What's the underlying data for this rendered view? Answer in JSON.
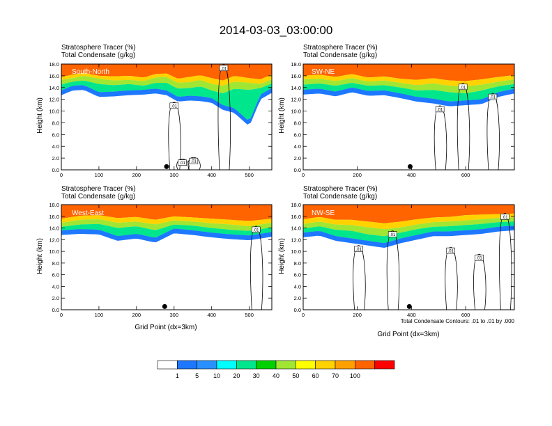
{
  "title": "2014-03-03_03:00:00",
  "footnote": "Total Condensate Contours: .01 to .01 by .000",
  "colorbar": {
    "colors": [
      "#ffffff",
      "#1e78ff",
      "#2891ff",
      "#00ffff",
      "#00e68c",
      "#00d200",
      "#a0e632",
      "#ffff00",
      "#ffd200",
      "#ffa000",
      "#ff6400",
      "#ff0000"
    ],
    "labels": [
      "1",
      "5",
      "10",
      "20",
      "30",
      "40",
      "50",
      "60",
      "70",
      "100"
    ]
  },
  "chart_data": [
    {
      "type": "contour",
      "panel_label": "South-North",
      "header_line1": "Stratosphere Tracer   (%)",
      "header_line2": "Total Condensate   (g/kg)",
      "ylabel": "Height (km)",
      "xlabel": "",
      "xlim": [
        0,
        560
      ],
      "ylim": [
        0,
        18
      ],
      "xticks": [
        "0",
        "100",
        "200",
        "300",
        "400",
        "500"
      ],
      "xtick_values": [
        0,
        100,
        200,
        300,
        400,
        500
      ],
      "yticks": [
        "0.0",
        "2.0",
        "4.0",
        "6.0",
        "8.0",
        "10.0",
        "12.0",
        "14.0",
        "16.0",
        "18.0"
      ],
      "contour_labels": [
        ".01",
        ".01",
        ".01",
        ".01"
      ],
      "contour_label_points": [
        [
          300,
          10.8
        ],
        [
          432,
          17.2
        ],
        [
          322,
          1.1
        ],
        [
          352,
          1.4
        ]
      ],
      "marker_x": 280,
      "profile": [
        [
          0,
          16.6,
          15.8,
          15.3,
          14.5,
          13.5
        ],
        [
          30,
          16.9,
          16.2,
          15.6,
          15.0,
          14.3
        ],
        [
          60,
          17.0,
          16.5,
          16.0,
          15.2,
          14.4
        ],
        [
          100,
          16.8,
          16.0,
          15.5,
          14.6,
          13.2
        ],
        [
          140,
          16.8,
          15.9,
          15.2,
          14.4,
          13.3
        ],
        [
          180,
          16.9,
          16.0,
          15.3,
          14.6,
          13.5
        ],
        [
          220,
          16.7,
          15.7,
          15.1,
          14.3,
          13.6
        ],
        [
          250,
          17.0,
          16.3,
          15.7,
          14.8,
          13.8
        ],
        [
          280,
          17.1,
          16.4,
          15.8,
          14.8,
          13.5
        ],
        [
          310,
          16.6,
          15.5,
          14.8,
          13.8,
          12.4
        ],
        [
          340,
          16.7,
          15.8,
          14.9,
          13.9,
          12.6
        ],
        [
          370,
          16.9,
          16.1,
          15.3,
          14.2,
          12.5
        ],
        [
          400,
          16.8,
          15.6,
          14.6,
          13.5,
          12.2
        ],
        [
          430,
          16.5,
          15.2,
          14.3,
          13.0,
          11.0
        ],
        [
          460,
          16.8,
          16.0,
          15.0,
          13.8,
          10.5
        ],
        [
          500,
          16.7,
          15.6,
          14.8,
          13.6,
          8.2
        ],
        [
          530,
          16.6,
          15.4,
          14.6,
          13.9,
          12.8
        ],
        [
          560,
          16.9,
          16.2,
          15.4,
          14.7,
          13.9
        ]
      ]
    },
    {
      "type": "contour",
      "panel_label": "SW-NE",
      "header_line1": "Stratosphere Tracer   (%)",
      "header_line2": "Total Condensate   (g/kg)",
      "ylabel": "Height (km)",
      "xlabel": "",
      "xlim": [
        0,
        780
      ],
      "ylim": [
        0,
        18
      ],
      "xticks": [
        "0",
        "200",
        "400",
        "600"
      ],
      "xtick_values": [
        0,
        200,
        400,
        600
      ],
      "yticks": [
        "0.0",
        "2.0",
        "4.0",
        "6.0",
        "8.0",
        "10.0",
        "12.0",
        "14.0",
        "16.0",
        "18.0"
      ],
      "contour_labels": [
        ".01",
        ".01",
        ".01"
      ],
      "contour_label_points": [
        [
          505,
          10.2
        ],
        [
          590,
          14.0
        ],
        [
          700,
          12.3
        ]
      ],
      "marker_x": 395,
      "profile": [
        [
          0,
          16.8,
          16.0,
          15.4,
          14.5,
          13.6
        ],
        [
          60,
          16.9,
          16.2,
          15.5,
          14.7,
          13.8
        ],
        [
          120,
          16.7,
          15.8,
          15.1,
          14.3,
          13.3
        ],
        [
          180,
          17.0,
          16.3,
          15.6,
          14.8,
          14.0
        ],
        [
          240,
          16.7,
          15.7,
          15.0,
          14.3,
          13.4
        ],
        [
          300,
          16.8,
          15.9,
          15.2,
          14.4,
          13.5
        ],
        [
          360,
          16.6,
          15.5,
          14.8,
          14.0,
          13.0
        ],
        [
          420,
          16.5,
          15.3,
          14.4,
          13.5,
          12.4
        ],
        [
          480,
          16.7,
          15.6,
          14.7,
          13.6,
          12.1
        ],
        [
          540,
          16.5,
          15.2,
          14.3,
          13.2,
          11.6
        ],
        [
          600,
          16.4,
          15.1,
          14.2,
          13.0,
          11.8
        ],
        [
          660,
          16.6,
          15.4,
          14.5,
          13.5,
          12.0
        ],
        [
          720,
          16.8,
          15.8,
          15.0,
          14.2,
          13.2
        ],
        [
          780,
          16.9,
          16.1,
          15.4,
          14.6,
          13.8
        ]
      ]
    },
    {
      "type": "contour",
      "panel_label": "West-East",
      "header_line1": "Stratosphere Tracer   (%)",
      "header_line2": "Total Condensate   (g/kg)",
      "ylabel": "Height (km)",
      "xlabel": "Grid Point (dx=3km)",
      "xlim": [
        0,
        560
      ],
      "ylim": [
        0,
        18
      ],
      "xticks": [
        "0",
        "100",
        "200",
        "300",
        "400",
        "500"
      ],
      "xtick_values": [
        0,
        100,
        200,
        300,
        400,
        500
      ],
      "yticks": [
        "0.0",
        "2.0",
        "4.0",
        "6.0",
        "8.0",
        "10.0",
        "12.0",
        "14.0",
        "16.0",
        "18.0"
      ],
      "contour_labels": [
        ".01"
      ],
      "contour_label_points": [
        [
          518,
          13.6
        ]
      ],
      "marker_x": 275,
      "profile": [
        [
          0,
          16.6,
          15.6,
          14.9,
          14.2,
          13.6
        ],
        [
          50,
          16.9,
          16.1,
          15.4,
          14.6,
          13.8
        ],
        [
          100,
          17.0,
          16.2,
          15.5,
          14.7,
          13.7
        ],
        [
          150,
          16.6,
          15.7,
          14.9,
          14.0,
          12.6
        ],
        [
          200,
          16.8,
          15.9,
          15.1,
          14.3,
          13.0
        ],
        [
          250,
          16.5,
          15.4,
          14.6,
          13.6,
          12.3
        ],
        [
          300,
          16.9,
          16.0,
          15.3,
          14.6,
          13.9
        ],
        [
          350,
          16.8,
          15.8,
          15.1,
          14.4,
          13.6
        ],
        [
          400,
          16.6,
          15.6,
          14.8,
          14.0,
          13.2
        ],
        [
          450,
          16.5,
          15.4,
          14.6,
          13.7,
          12.9
        ],
        [
          500,
          16.4,
          15.2,
          14.3,
          13.5,
          12.7
        ],
        [
          560,
          16.6,
          15.6,
          14.9,
          14.1,
          13.3
        ]
      ]
    },
    {
      "type": "contour",
      "panel_label": "NW-SE",
      "header_line1": "Stratosphere Tracer   (%)",
      "header_line2": "Total Condensate   (g/kg)",
      "ylabel": "Height (km)",
      "xlabel": "Grid Point (dx=3km)",
      "xlim": [
        0,
        780
      ],
      "ylim": [
        0,
        18
      ],
      "xticks": [
        "0",
        "200",
        "400",
        "600"
      ],
      "xtick_values": [
        0,
        200,
        400,
        600
      ],
      "yticks": [
        "0.0",
        "2.0",
        "4.0",
        "6.0",
        "8.0",
        "10.0",
        "12.0",
        "14.0",
        "16.0",
        "18.0"
      ],
      "contour_labels": [
        ".01",
        ".01",
        ".01",
        ".01",
        ".01"
      ],
      "contour_label_points": [
        [
          205,
          10.3
        ],
        [
          330,
          12.8
        ],
        [
          545,
          10.0
        ],
        [
          650,
          8.8
        ],
        [
          745,
          15.8
        ]
      ],
      "marker_x": 392,
      "profile": [
        [
          0,
          16.6,
          15.5,
          14.7,
          13.9,
          13.2
        ],
        [
          60,
          16.8,
          15.9,
          15.1,
          14.3,
          13.5
        ],
        [
          120,
          16.5,
          15.4,
          14.6,
          13.7,
          12.6
        ],
        [
          180,
          16.6,
          15.4,
          14.5,
          13.5,
          12.2
        ],
        [
          240,
          16.4,
          15.1,
          14.1,
          12.9,
          11.8
        ],
        [
          300,
          16.3,
          14.8,
          13.8,
          12.6,
          11.4
        ],
        [
          360,
          16.5,
          15.1,
          14.1,
          13.2,
          12.2
        ],
        [
          420,
          16.6,
          15.5,
          14.6,
          13.8,
          12.8
        ],
        [
          480,
          16.8,
          15.8,
          15.0,
          14.2,
          13.4
        ],
        [
          540,
          16.9,
          15.9,
          15.1,
          14.3,
          13.4
        ],
        [
          600,
          17.0,
          16.2,
          15.3,
          14.5,
          13.6
        ],
        [
          660,
          17.0,
          16.3,
          15.5,
          14.7,
          13.8
        ],
        [
          720,
          17.1,
          16.4,
          15.7,
          15.0,
          14.2
        ],
        [
          780,
          17.1,
          16.5,
          15.8,
          15.1,
          14.4
        ]
      ]
    }
  ]
}
